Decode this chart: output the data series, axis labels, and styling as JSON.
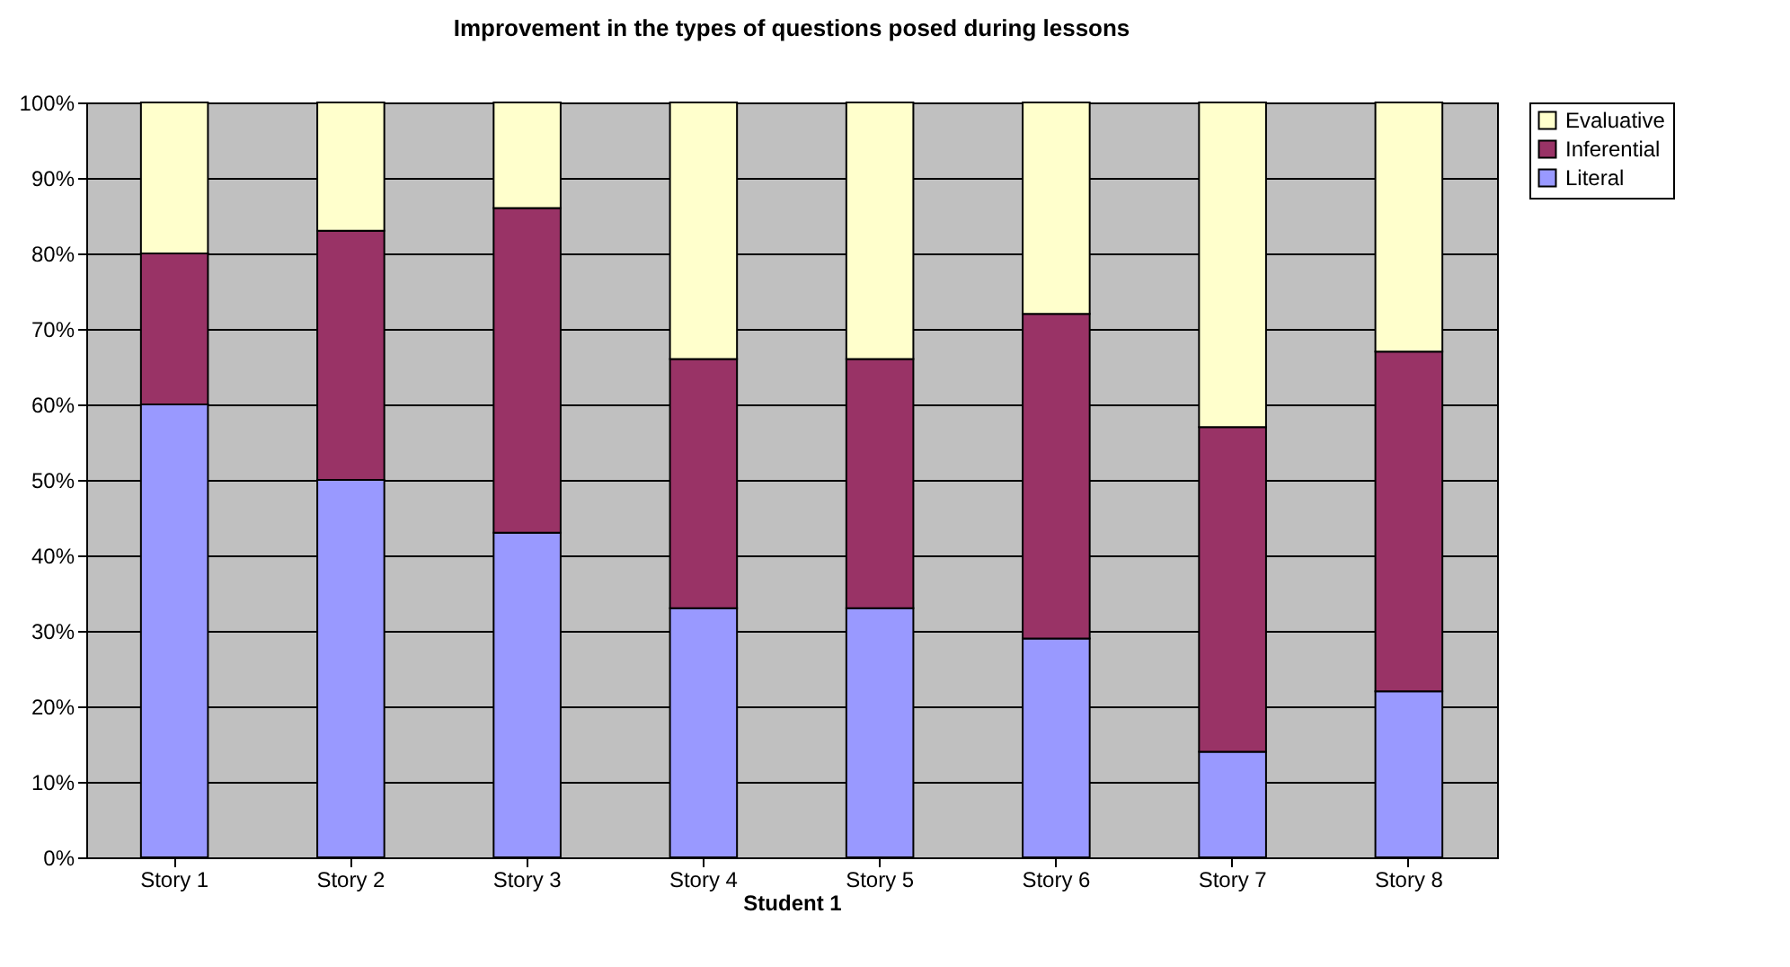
{
  "chart_data": {
    "type": "bar",
    "title": "Improvement in the types of questions posed during lessons",
    "xlabel": "Student 1",
    "categories": [
      "Story 1",
      "Story 2",
      "Story 3",
      "Story 4",
      "Story 5",
      "Story 6",
      "Story 7",
      "Story 8"
    ],
    "stacked": true,
    "series": [
      {
        "name": "Literal",
        "color": "#9999ff",
        "values": [
          60,
          50,
          43,
          33,
          33,
          29,
          14,
          22
        ]
      },
      {
        "name": "Inferential",
        "color": "#993366",
        "values": [
          20,
          33,
          43,
          33,
          33,
          43,
          43,
          45
        ]
      },
      {
        "name": "Evaluative",
        "color": "#ffffcc",
        "values": [
          20,
          17,
          14,
          34,
          34,
          28,
          43,
          33
        ]
      }
    ],
    "ylim": [
      0,
      100
    ],
    "yticks": [
      {
        "value": 0,
        "label": "0%"
      },
      {
        "value": 10,
        "label": "10%"
      },
      {
        "value": 20,
        "label": "20%"
      },
      {
        "value": 30,
        "label": "30%"
      },
      {
        "value": 40,
        "label": "40%"
      },
      {
        "value": 50,
        "label": "50%"
      },
      {
        "value": 60,
        "label": "60%"
      },
      {
        "value": 70,
        "label": "70%"
      },
      {
        "value": 80,
        "label": "80%"
      },
      {
        "value": 90,
        "label": "90%"
      },
      {
        "value": 100,
        "label": "100%"
      }
    ],
    "grid": "y",
    "legend": "right"
  }
}
